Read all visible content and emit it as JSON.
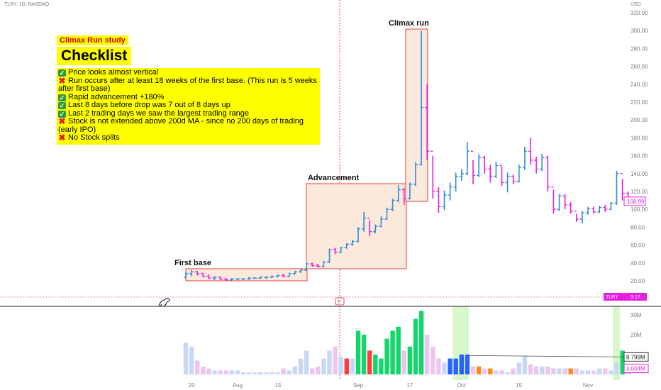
{
  "header": {
    "ticker": "TLRY, 1D, NASDAQ",
    "currency": "USD"
  },
  "tags": {
    "study": "Climax Run study",
    "title": "Checklist"
  },
  "checklist": [
    {
      "status": "ok",
      "text": "Price looks almost vertical"
    },
    {
      "status": "bad",
      "text": "Run occurs after at least 18 weeks of the first base. (This run is 5 weeks after first base)"
    },
    {
      "status": "ok",
      "text": "Rapid advancement +180%"
    },
    {
      "status": "ok",
      "text": "Last 8 days before drop was 7 out of 8 days up"
    },
    {
      "status": "ok",
      "text": "Last 2 trading days we saw the largest trading range"
    },
    {
      "status": "bad",
      "text": "Stock is not extended above 200d MA - since no 200 days of trading (early IPO)"
    },
    {
      "status": "bad",
      "text": "No Stock splits"
    }
  ],
  "annotations": {
    "first_base": "First base",
    "advancement": "Advancement",
    "climax_run": "Climax run"
  },
  "price_axis": {
    "ticks": [
      "320.00",
      "300.00",
      "280.00",
      "260.00",
      "240.00",
      "220.00",
      "200.00",
      "180.00",
      "160.00",
      "140.00",
      "120.00",
      "100.00",
      "80.00",
      "60.00",
      "40.00",
      "20.00"
    ]
  },
  "volume_axis": {
    "ticks": [
      "30M",
      "20M",
      "10M"
    ]
  },
  "x_axis": {
    "ticks": [
      "20",
      "Aug",
      "13",
      "Sep",
      "17",
      "Oct",
      "15",
      "Nov"
    ]
  },
  "labels": {
    "last_price": "108.99",
    "symbol": "TLRY",
    "symbol_value": "3.17",
    "volume_ma": "8.799M",
    "last_volume": "3.004M",
    "earnings": "E"
  },
  "colors": {
    "up": "#2f8bdc",
    "down": "#e61ee0",
    "vol_up": "#12d86c",
    "vol_down": "#ff3b3b",
    "vol_blue": "#2962ff",
    "vol_orange": "#ff8a18",
    "highlight": "#d8f8cc",
    "box_fill": "#fbe9dc",
    "box_stroke": "#e8413d"
  },
  "chart_data": {
    "type": "bar",
    "price_ylim": [
      10,
      325
    ],
    "volume_ylim": [
      0,
      36
    ],
    "bars": [
      {
        "o": 24,
        "h": 30,
        "l": 22,
        "c": 28
      },
      {
        "o": 28,
        "h": 32,
        "l": 25,
        "c": 30
      },
      {
        "o": 30,
        "h": 31,
        "l": 26,
        "c": 28
      },
      {
        "o": 28,
        "h": 29,
        "l": 24,
        "c": 25
      },
      {
        "o": 25,
        "h": 27,
        "l": 22,
        "c": 23
      },
      {
        "o": 23,
        "h": 25,
        "l": 21,
        "c": 24
      },
      {
        "o": 24,
        "h": 25,
        "l": 21,
        "c": 22
      },
      {
        "o": 22,
        "h": 23,
        "l": 20,
        "c": 21
      },
      {
        "o": 21,
        "h": 23,
        "l": 20,
        "c": 22
      },
      {
        "o": 22,
        "h": 23,
        "l": 21,
        "c": 22
      },
      {
        "o": 22,
        "h": 23,
        "l": 21,
        "c": 22
      },
      {
        "o": 22,
        "h": 24,
        "l": 21,
        "c": 23
      },
      {
        "o": 23,
        "h": 24,
        "l": 22,
        "c": 23
      },
      {
        "o": 23,
        "h": 25,
        "l": 22,
        "c": 24
      },
      {
        "o": 24,
        "h": 25,
        "l": 22,
        "c": 24
      },
      {
        "o": 24,
        "h": 26,
        "l": 23,
        "c": 25
      },
      {
        "o": 25,
        "h": 27,
        "l": 24,
        "c": 26
      },
      {
        "o": 26,
        "h": 28,
        "l": 24,
        "c": 25
      },
      {
        "o": 25,
        "h": 29,
        "l": 24,
        "c": 28
      },
      {
        "o": 28,
        "h": 31,
        "l": 27,
        "c": 30
      },
      {
        "o": 30,
        "h": 33,
        "l": 29,
        "c": 32
      },
      {
        "o": 32,
        "h": 40,
        "l": 31,
        "c": 39
      },
      {
        "o": 39,
        "h": 40,
        "l": 36,
        "c": 37
      },
      {
        "o": 37,
        "h": 39,
        "l": 35,
        "c": 36
      },
      {
        "o": 36,
        "h": 42,
        "l": 35,
        "c": 41
      },
      {
        "o": 41,
        "h": 56,
        "l": 40,
        "c": 55
      },
      {
        "o": 55,
        "h": 57,
        "l": 50,
        "c": 52
      },
      {
        "o": 52,
        "h": 58,
        "l": 51,
        "c": 57
      },
      {
        "o": 57,
        "h": 62,
        "l": 56,
        "c": 61
      },
      {
        "o": 61,
        "h": 66,
        "l": 59,
        "c": 64
      },
      {
        "o": 64,
        "h": 80,
        "l": 63,
        "c": 78
      },
      {
        "o": 78,
        "h": 97,
        "l": 75,
        "c": 90
      },
      {
        "o": 90,
        "h": 88,
        "l": 70,
        "c": 75
      },
      {
        "o": 75,
        "h": 83,
        "l": 73,
        "c": 81
      },
      {
        "o": 81,
        "h": 92,
        "l": 80,
        "c": 89
      },
      {
        "o": 89,
        "h": 102,
        "l": 88,
        "c": 100
      },
      {
        "o": 100,
        "h": 112,
        "l": 98,
        "c": 110
      },
      {
        "o": 110,
        "h": 127,
        "l": 108,
        "c": 122
      },
      {
        "o": 122,
        "h": 124,
        "l": 105,
        "c": 112
      },
      {
        "o": 112,
        "h": 130,
        "l": 111,
        "c": 128
      },
      {
        "o": 128,
        "h": 153,
        "l": 126,
        "c": 150
      },
      {
        "o": 150,
        "h": 300,
        "l": 149,
        "c": 214
      },
      {
        "o": 214,
        "h": 240,
        "l": 155,
        "c": 165
      },
      {
        "o": 165,
        "h": 160,
        "l": 112,
        "c": 120
      },
      {
        "o": 120,
        "h": 125,
        "l": 96,
        "c": 103
      },
      {
        "o": 103,
        "h": 121,
        "l": 99,
        "c": 116
      },
      {
        "o": 116,
        "h": 130,
        "l": 110,
        "c": 125
      },
      {
        "o": 125,
        "h": 141,
        "l": 120,
        "c": 137
      },
      {
        "o": 137,
        "h": 145,
        "l": 132,
        "c": 140
      },
      {
        "o": 140,
        "h": 175,
        "l": 138,
        "c": 165
      },
      {
        "o": 165,
        "h": 155,
        "l": 128,
        "c": 138
      },
      {
        "o": 138,
        "h": 162,
        "l": 136,
        "c": 158
      },
      {
        "o": 158,
        "h": 160,
        "l": 140,
        "c": 145
      },
      {
        "o": 145,
        "h": 150,
        "l": 130,
        "c": 137
      },
      {
        "o": 137,
        "h": 153,
        "l": 135,
        "c": 149
      },
      {
        "o": 149,
        "h": 148,
        "l": 126,
        "c": 130
      },
      {
        "o": 130,
        "h": 141,
        "l": 119,
        "c": 137
      },
      {
        "o": 137,
        "h": 139,
        "l": 128,
        "c": 131
      },
      {
        "o": 131,
        "h": 150,
        "l": 130,
        "c": 147
      },
      {
        "o": 147,
        "h": 170,
        "l": 144,
        "c": 165
      },
      {
        "o": 165,
        "h": 180,
        "l": 150,
        "c": 155
      },
      {
        "o": 155,
        "h": 159,
        "l": 140,
        "c": 145
      },
      {
        "o": 145,
        "h": 162,
        "l": 143,
        "c": 158
      },
      {
        "o": 158,
        "h": 160,
        "l": 120,
        "c": 125
      },
      {
        "o": 125,
        "h": 122,
        "l": 95,
        "c": 100
      },
      {
        "o": 100,
        "h": 117,
        "l": 98,
        "c": 115
      },
      {
        "o": 115,
        "h": 117,
        "l": 100,
        "c": 105
      },
      {
        "o": 105,
        "h": 108,
        "l": 95,
        "c": 98
      },
      {
        "o": 98,
        "h": 95,
        "l": 86,
        "c": 89
      },
      {
        "o": 89,
        "h": 98,
        "l": 84,
        "c": 96
      },
      {
        "o": 96,
        "h": 103,
        "l": 94,
        "c": 101
      },
      {
        "o": 101,
        "h": 103,
        "l": 95,
        "c": 97
      },
      {
        "o": 97,
        "h": 104,
        "l": 96,
        "c": 102
      },
      {
        "o": 102,
        "h": 105,
        "l": 97,
        "c": 100
      },
      {
        "o": 100,
        "h": 108,
        "l": 99,
        "c": 107
      },
      {
        "o": 107,
        "h": 143,
        "l": 105,
        "c": 140
      },
      {
        "o": 140,
        "h": 134,
        "l": 110,
        "c": 118
      },
      {
        "o": 118,
        "h": 120,
        "l": 108,
        "c": 109
      }
    ],
    "volume_m": [
      16,
      14,
      7,
      4,
      3,
      2,
      2,
      2,
      2,
      2,
      1,
      1,
      1,
      1,
      1,
      1,
      1,
      3,
      2,
      4,
      8,
      12,
      3,
      4,
      8,
      12,
      14,
      9,
      8,
      8,
      22,
      20,
      12,
      10,
      8,
      18,
      22,
      24,
      12,
      14,
      28,
      32,
      20,
      14,
      8,
      6,
      8,
      8,
      10,
      10,
      4,
      4,
      3,
      3,
      2,
      2,
      1,
      3,
      6,
      9,
      5,
      4,
      4,
      4,
      3,
      3,
      3,
      3,
      3,
      2,
      2,
      2,
      3,
      3,
      2,
      6,
      12,
      3
    ],
    "volume_ma_m": 8.799
  }
}
